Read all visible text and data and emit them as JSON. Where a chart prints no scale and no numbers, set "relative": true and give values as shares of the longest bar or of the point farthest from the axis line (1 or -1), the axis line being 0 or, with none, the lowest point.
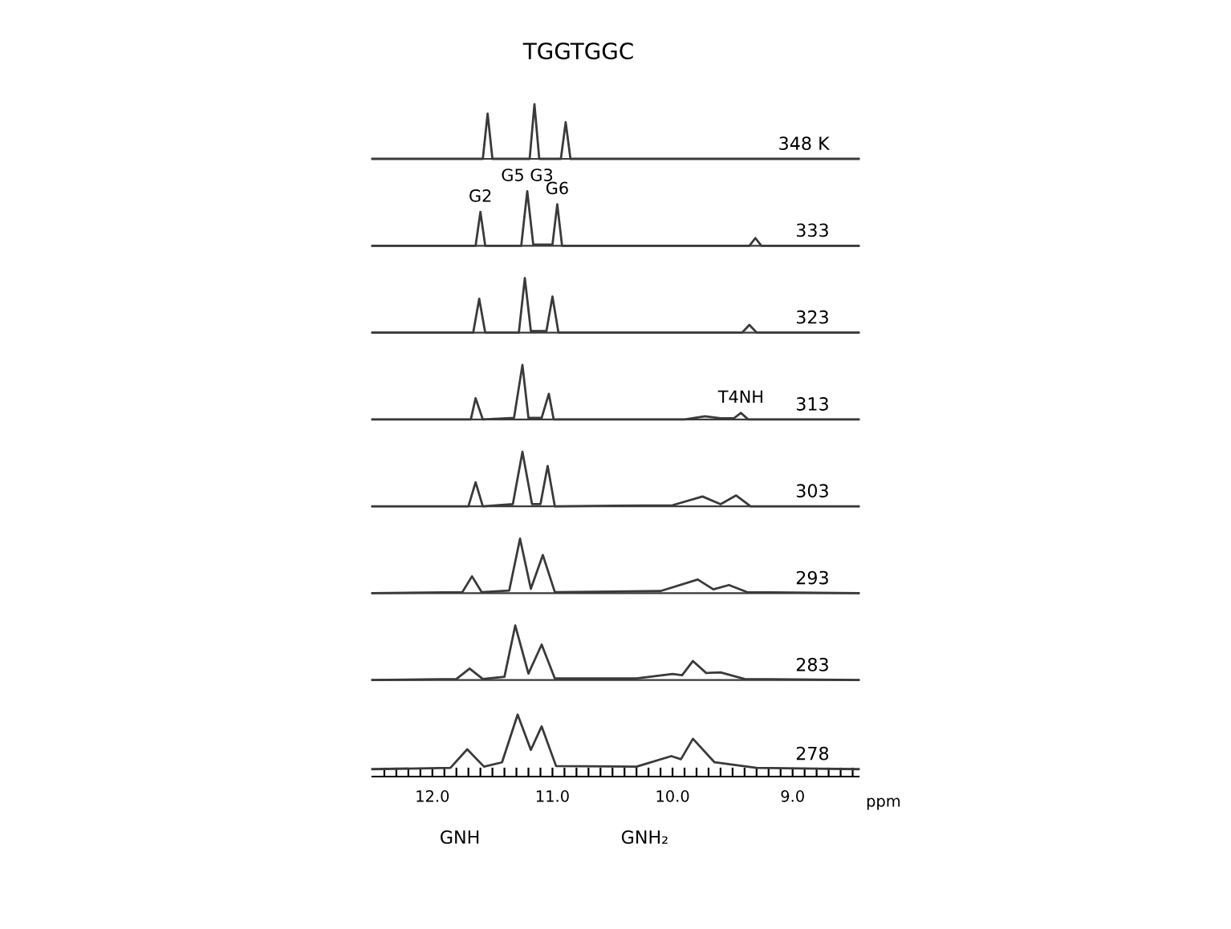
{
  "chart_data": [
    {
      "type": "line",
      "relative": true,
      "title": "TGGTGGC",
      "x": [
        12.5,
        11.58,
        11.54,
        11.5,
        11.19,
        11.15,
        11.11,
        10.93,
        10.89,
        10.85,
        8.45
      ],
      "series": [
        {
          "color": "#3a3a3a",
          "values": [
            0,
            0,
            0.83,
            0,
            0,
            1,
            0,
            0,
            0.67,
            0,
            0
          ]
        }
      ],
      "annotations": [
        "348 K"
      ],
      "xlim": [
        12.5,
        8.45
      ],
      "tick_labels": false
    },
    {
      "type": "line",
      "relative": true,
      "x": [
        12.5,
        11.64,
        11.6,
        11.56,
        11.26,
        11.21,
        11.16,
        11.0,
        10.96,
        10.92,
        9.36,
        9.31,
        9.26,
        8.45
      ],
      "series": [
        {
          "color": "#3a3a3a",
          "values": [
            0,
            0,
            0.62,
            0,
            0,
            1,
            0.02,
            0.02,
            0.76,
            0,
            0,
            0.14,
            0,
            0
          ]
        }
      ],
      "annotations": [
        "333",
        {
          "text": "G2",
          "x": 11.6,
          "y": 0.62
        },
        {
          "text": "G5 G3",
          "x": 11.21,
          "y": 1
        },
        {
          "text": "G6",
          "x": 10.96,
          "y": 0.76
        }
      ],
      "xlim": [
        12.5,
        8.45
      ],
      "tick_labels": false
    },
    {
      "type": "line",
      "relative": true,
      "x": [
        12.5,
        11.66,
        11.61,
        11.56,
        11.28,
        11.23,
        11.18,
        11.05,
        11.0,
        10.95,
        9.42,
        9.36,
        9.3,
        8.45
      ],
      "series": [
        {
          "color": "#3a3a3a",
          "values": [
            0,
            0,
            0.62,
            0,
            0,
            1,
            0.03,
            0.03,
            0.66,
            0,
            0,
            0.14,
            0,
            0
          ]
        }
      ],
      "annotations": [
        "323"
      ],
      "xlim": [
        12.5,
        8.45
      ],
      "tick_labels": false
    },
    {
      "type": "line",
      "relative": true,
      "x": [
        12.5,
        11.68,
        11.64,
        11.58,
        11.32,
        11.25,
        11.2,
        11.09,
        11.03,
        10.99,
        9.9,
        9.73,
        9.6,
        9.49,
        9.43,
        9.37,
        8.45
      ],
      "series": [
        {
          "color": "#3a3a3a",
          "values": [
            0,
            0,
            0.39,
            0,
            0.03,
            1,
            0.03,
            0.03,
            0.47,
            0,
            0,
            0.06,
            0.02,
            0.02,
            0.12,
            0,
            0
          ]
        }
      ],
      "annotations": [
        "313",
        {
          "text": "T4NH",
          "x": 9.43,
          "y": 0.12
        }
      ],
      "xlim": [
        12.5,
        8.45
      ],
      "tick_labels": false
    },
    {
      "type": "line",
      "relative": true,
      "x": [
        12.5,
        11.7,
        11.64,
        11.58,
        11.33,
        11.25,
        11.17,
        11.1,
        11.04,
        10.98,
        10.0,
        9.75,
        9.6,
        9.47,
        9.35,
        8.45
      ],
      "series": [
        {
          "color": "#3a3a3a",
          "values": [
            0,
            0,
            0.44,
            0,
            0.04,
            1,
            0.04,
            0.04,
            0.74,
            0,
            0.02,
            0.18,
            0.04,
            0.2,
            0,
            0
          ]
        }
      ],
      "annotations": [
        "303"
      ],
      "xlim": [
        12.5,
        8.45
      ],
      "tick_labels": false
    },
    {
      "type": "line",
      "relative": true,
      "x": [
        12.5,
        11.75,
        11.67,
        11.59,
        11.36,
        11.27,
        11.18,
        11.08,
        10.98,
        10.1,
        9.79,
        9.66,
        9.53,
        9.38,
        8.45
      ],
      "series": [
        {
          "color": "#3a3a3a",
          "values": [
            0,
            0.02,
            0.31,
            0.02,
            0.05,
            1,
            0.08,
            0.7,
            0.02,
            0.04,
            0.25,
            0.07,
            0.15,
            0.02,
            0
          ]
        }
      ],
      "annotations": [
        "293"
      ],
      "xlim": [
        12.5,
        8.45
      ],
      "tick_labels": false
    },
    {
      "type": "line",
      "relative": true,
      "x": [
        12.5,
        11.8,
        11.69,
        11.58,
        11.4,
        11.31,
        11.2,
        11.09,
        10.98,
        10.3,
        10.0,
        9.92,
        9.83,
        9.72,
        9.6,
        9.4,
        8.45
      ],
      "series": [
        {
          "color": "#3a3a3a",
          "values": [
            0,
            0.02,
            0.21,
            0.02,
            0.06,
            1,
            0.12,
            0.65,
            0.03,
            0.03,
            0.11,
            0.09,
            0.35,
            0.13,
            0.14,
            0.02,
            0
          ]
        }
      ],
      "annotations": [
        "283"
      ],
      "xlim": [
        12.5,
        8.45
      ],
      "tick_labels": false
    },
    {
      "type": "line",
      "relative": true,
      "x": [
        12.5,
        11.85,
        11.71,
        11.57,
        11.42,
        11.29,
        11.18,
        11.09,
        10.97,
        10.3,
        10.01,
        9.93,
        9.83,
        9.65,
        9.3,
        8.45
      ],
      "series": [
        {
          "color": "#3a3a3a",
          "values": [
            0.12,
            0.14,
            0.44,
            0.16,
            0.23,
            1,
            0.43,
            0.81,
            0.17,
            0.16,
            0.33,
            0.28,
            0.61,
            0.23,
            0.14,
            0.12
          ]
        }
      ],
      "annotations": [
        "278",
        "GNH",
        "GNH₂"
      ],
      "xlabel": "ppm",
      "xlim": [
        12.5,
        8.45
      ],
      "tick_labels": "x",
      "xticks": [
        {
          "value": 12.4,
          "label": null
        },
        {
          "value": 12.3,
          "label": null
        },
        {
          "value": 12.2,
          "label": null
        },
        {
          "value": 12.1,
          "label": null
        },
        {
          "value": 12.0,
          "label": "12.0"
        },
        {
          "value": 11.9,
          "label": null
        },
        {
          "value": 11.8,
          "label": null
        },
        {
          "value": 11.7,
          "label": null
        },
        {
          "value": 11.6,
          "label": null
        },
        {
          "value": 11.5,
          "label": null
        },
        {
          "value": 11.4,
          "label": null
        },
        {
          "value": 11.3,
          "label": null
        },
        {
          "value": 11.2,
          "label": null
        },
        {
          "value": 11.1,
          "label": null
        },
        {
          "value": 11.0,
          "label": "11.0"
        },
        {
          "value": 10.9,
          "label": null
        },
        {
          "value": 10.8,
          "label": null
        },
        {
          "value": 10.7,
          "label": null
        },
        {
          "value": 10.6,
          "label": null
        },
        {
          "value": 10.5,
          "label": null
        },
        {
          "value": 10.4,
          "label": null
        },
        {
          "value": 10.3,
          "label": null
        },
        {
          "value": 10.2,
          "label": null
        },
        {
          "value": 10.1,
          "label": null
        },
        {
          "value": 10.0,
          "label": "10.0"
        },
        {
          "value": 9.9,
          "label": null
        },
        {
          "value": 9.8,
          "label": null
        },
        {
          "value": 9.7,
          "label": null
        },
        {
          "value": 9.6,
          "label": null
        },
        {
          "value": 9.5,
          "label": null
        },
        {
          "value": 9.4,
          "label": null
        },
        {
          "value": 9.3,
          "label": null
        },
        {
          "value": 9.2,
          "label": null
        },
        {
          "value": 9.1,
          "label": null
        },
        {
          "value": 9.0,
          "label": "9.0"
        },
        {
          "value": 8.9,
          "label": null
        },
        {
          "value": 8.8,
          "label": null
        },
        {
          "value": 8.7,
          "label": null
        },
        {
          "value": 8.6,
          "label": null
        },
        {
          "value": 8.5,
          "label": null
        }
      ]
    }
  ]
}
